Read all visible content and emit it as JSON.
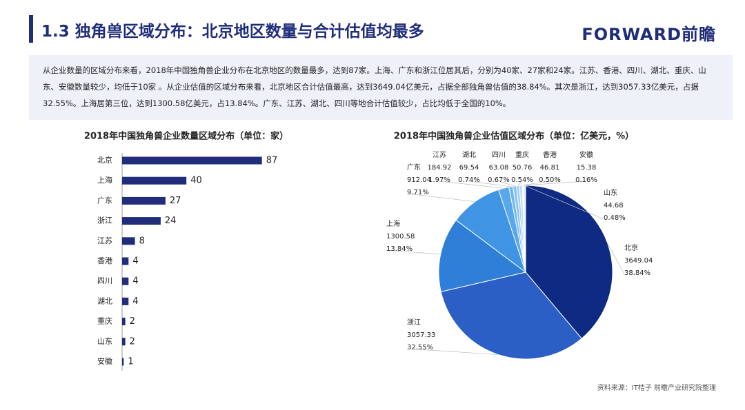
{
  "header": {
    "title": "1.3 独角兽区域分布：北京地区数量与合计估值均最多",
    "logo": "FORWARD前瞻"
  },
  "summary": "从企业数量的区域分布来看，2018年中国独角兽企业分布在北京地区的数量最多，达到87家。上海、广东和浙江位居其后，分别为40家、27家和24家。江苏、香港、四川、湖北、重庆、山东、安徽数量较少，均低于10家 。从企业估值的区域分布来看，北京地区合计估值最高，达到3649.04亿美元，占据全部独角兽估值的38.84%。其次是浙江，达到3057.33亿美元，占据32.55%。上海居第三位，达到1300.58亿美元，占13.84%。广东、江苏、湖北、四川等地合计估值较少，占比均低于全国的10%。",
  "chart_data": [
    {
      "type": "bar",
      "orientation": "horizontal",
      "title": "2018年中国独角兽企业数量区域分布（单位：家）",
      "categories": [
        "北京",
        "上海",
        "广东",
        "浙江",
        "江苏",
        "香港",
        "四川",
        "湖北",
        "重庆",
        "山东",
        "安徽"
      ],
      "values": [
        87,
        40,
        27,
        24,
        8,
        4,
        4,
        4,
        2,
        2,
        1
      ],
      "color": "#1f2d7a",
      "xlim": [
        0,
        100
      ]
    },
    {
      "type": "pie",
      "title": "2018年中国独角兽企业估值区域分布（单位：亿美元，%）",
      "categories": [
        "北京",
        "浙江",
        "上海",
        "广东",
        "江苏",
        "湖北",
        "四川",
        "重庆",
        "香港",
        "安徽",
        "山东"
      ],
      "values": [
        3649.04,
        3057.33,
        1300.58,
        912.04,
        184.92,
        69.54,
        63.08,
        50.76,
        46.81,
        15.38,
        44.68
      ],
      "share_labels": [
        "38.84%",
        "32.55%",
        "13.84%",
        "9.71%",
        "1.97%",
        "0.74%",
        "0.67%",
        "0.54%",
        "0.50%",
        "0.16%",
        "0.48%"
      ],
      "colors": [
        "#0f2a82",
        "#2b5fc6",
        "#2f7ed8",
        "#3f94e4",
        "#5aa7ec",
        "#74b7f0",
        "#8cc4f2",
        "#a3d0f5",
        "#b8dcf7",
        "#cde6f9",
        "#e0effb"
      ]
    }
  ],
  "source": "资料来源：IT桔子 前瞻产业研究院整理"
}
